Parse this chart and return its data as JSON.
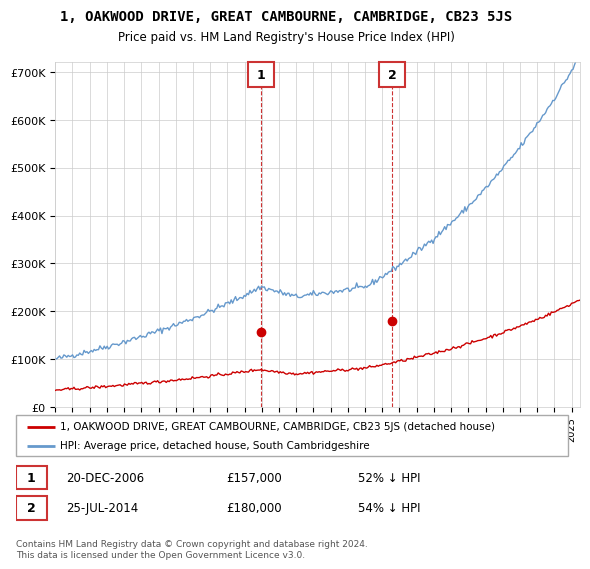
{
  "title": "1, OAKWOOD DRIVE, GREAT CAMBOURNE, CAMBRIDGE, CB23 5JS",
  "subtitle": "Price paid vs. HM Land Registry's House Price Index (HPI)",
  "red_label": "1, OAKWOOD DRIVE, GREAT CAMBOURNE, CAMBRIDGE, CB23 5JS (detached house)",
  "blue_label": "HPI: Average price, detached house, South Cambridgeshire",
  "transaction1_label": "20-DEC-2006",
  "transaction1_price": "£157,000",
  "transaction1_pct": "52% ↓ HPI",
  "transaction1_num": 157000,
  "transaction1_year": 2006.97,
  "transaction2_label": "25-JUL-2014",
  "transaction2_price": "£180,000",
  "transaction2_pct": "54% ↓ HPI",
  "transaction2_num": 180000,
  "transaction2_year": 2014.56,
  "ylim": [
    0,
    720000
  ],
  "yticks": [
    0,
    100000,
    200000,
    300000,
    400000,
    500000,
    600000,
    700000
  ],
  "ytick_labels": [
    "£0",
    "£100K",
    "£200K",
    "£300K",
    "£400K",
    "£500K",
    "£600K",
    "£700K"
  ],
  "footer": "Contains HM Land Registry data © Crown copyright and database right 2024.\nThis data is licensed under the Open Government Licence v3.0.",
  "red_color": "#cc0000",
  "blue_color": "#6699cc",
  "grid_color": "#cccccc",
  "background_color": "#ffffff",
  "annotation_box_color": "#cc3333"
}
